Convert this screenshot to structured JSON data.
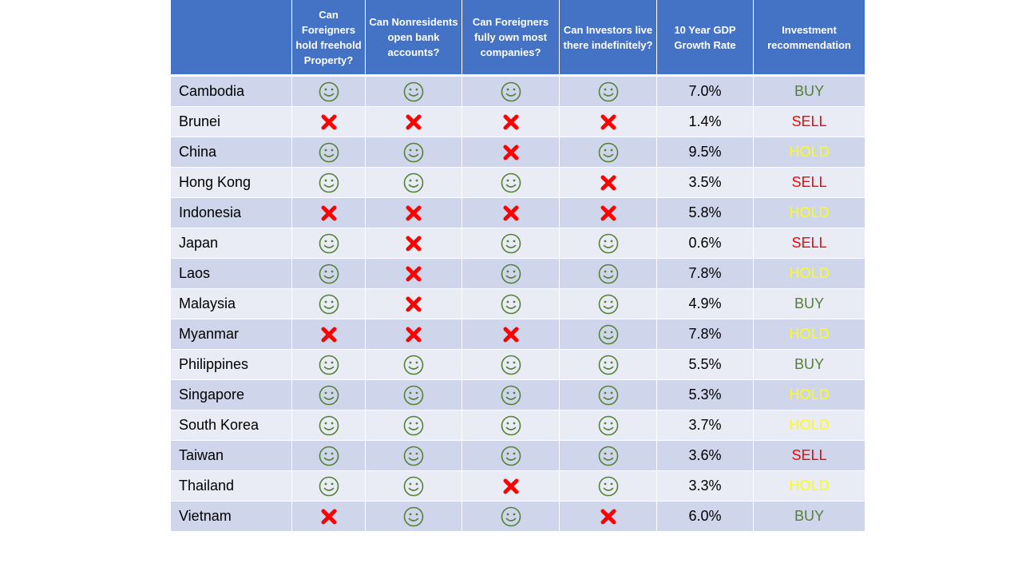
{
  "table": {
    "headers": [
      "",
      "Can Foreigners hold freehold Property?",
      "Can Nonresidents open bank accounts?",
      "Can Foreigners fully own most companies?",
      "Can Investors live there indefinitely?",
      "10 Year GDP Growth Rate",
      "Investment recommendation"
    ],
    "rows": [
      {
        "country": "Cambodia",
        "answers": [
          "yes",
          "yes",
          "yes",
          "yes"
        ],
        "gdp": "7.0%",
        "recommendation": "BUY"
      },
      {
        "country": "Brunei",
        "answers": [
          "no",
          "no",
          "no",
          "no"
        ],
        "gdp": "1.4%",
        "recommendation": "SELL"
      },
      {
        "country": "China",
        "answers": [
          "yes",
          "yes",
          "no",
          "yes"
        ],
        "gdp": "9.5%",
        "recommendation": "HOLD"
      },
      {
        "country": "Hong Kong",
        "answers": [
          "yes",
          "yes",
          "yes",
          "no"
        ],
        "gdp": "3.5%",
        "recommendation": "SELL"
      },
      {
        "country": "Indonesia",
        "answers": [
          "no",
          "no",
          "no",
          "no"
        ],
        "gdp": "5.8%",
        "recommendation": "HOLD"
      },
      {
        "country": "Japan",
        "answers": [
          "yes",
          "no",
          "yes",
          "yes"
        ],
        "gdp": "0.6%",
        "recommendation": "SELL"
      },
      {
        "country": "Laos",
        "answers": [
          "yes",
          "no",
          "yes",
          "yes"
        ],
        "gdp": "7.8%",
        "recommendation": "HOLD"
      },
      {
        "country": "Malaysia",
        "answers": [
          "yes",
          "no",
          "yes",
          "yes"
        ],
        "gdp": "4.9%",
        "recommendation": "BUY"
      },
      {
        "country": "Myanmar",
        "answers": [
          "no",
          "no",
          "no",
          "yes"
        ],
        "gdp": "7.8%",
        "recommendation": "HOLD"
      },
      {
        "country": "Philippines",
        "answers": [
          "yes",
          "yes",
          "yes",
          "yes"
        ],
        "gdp": "5.5%",
        "recommendation": "BUY"
      },
      {
        "country": "Singapore",
        "answers": [
          "yes",
          "yes",
          "yes",
          "yes"
        ],
        "gdp": "5.3%",
        "recommendation": "HOLD"
      },
      {
        "country": "South Korea",
        "answers": [
          "yes",
          "yes",
          "yes",
          "yes"
        ],
        "gdp": "3.7%",
        "recommendation": "HOLD"
      },
      {
        "country": "Taiwan",
        "answers": [
          "yes",
          "yes",
          "yes",
          "yes"
        ],
        "gdp": "3.6%",
        "recommendation": "SELL"
      },
      {
        "country": "Thailand",
        "answers": [
          "yes",
          "yes",
          "no",
          "yes"
        ],
        "gdp": "3.3%",
        "recommendation": "HOLD"
      },
      {
        "country": "Vietnam",
        "answers": [
          "no",
          "yes",
          "yes",
          "no"
        ],
        "gdp": "6.0%",
        "recommendation": "BUY"
      }
    ]
  },
  "icons": {
    "yes": "smiley-face-icon",
    "no": "red-x-icon"
  },
  "colors": {
    "header_bg": "#4472c4",
    "row_odd": "#cfd5ea",
    "row_even": "#e9ebf5",
    "smiley": "#548235",
    "cross": "#ff0000",
    "BUY": "#548235",
    "SELL": "#ff0000",
    "HOLD": "#ffff00"
  }
}
